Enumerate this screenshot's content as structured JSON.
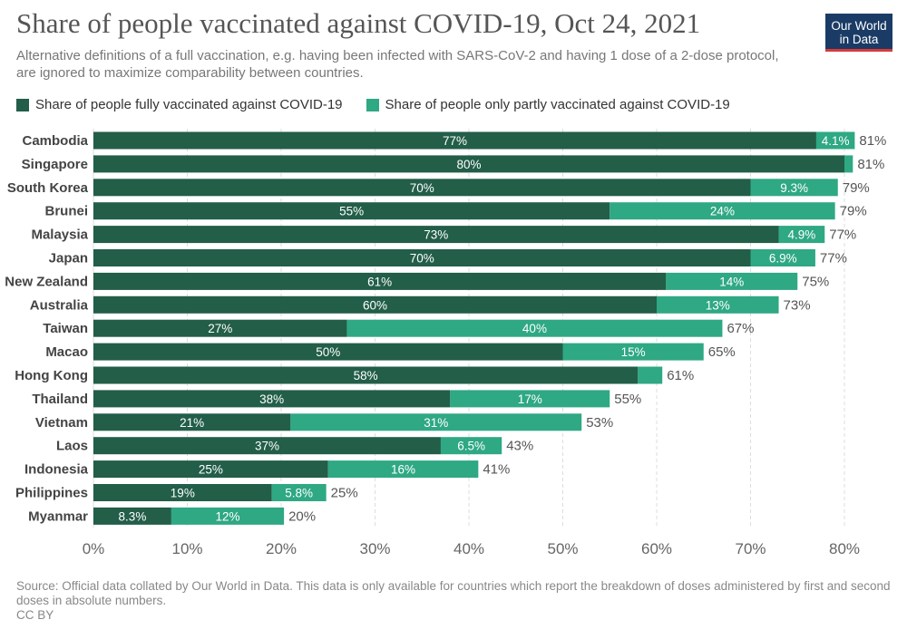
{
  "header": {
    "title": "Share of people vaccinated against COVID-19, Oct 24, 2021",
    "subtitle": "Alternative definitions of a full vaccination, e.g. having been infected with SARS-CoV-2 and having 1 dose of a 2-dose protocol, are ignored to maximize comparability between countries.",
    "logo_line1": "Our World",
    "logo_line2": "in Data"
  },
  "footer": {
    "source": "Source: Official data collated by Our World in Data. This data is only available for countries which report the breakdown of doses administered by first and second doses in absolute numbers.",
    "license": "CC BY"
  },
  "colors": {
    "full": "#225e48",
    "partial": "#2fa884",
    "grid": "#dddddd"
  },
  "chart_data": {
    "type": "bar",
    "orientation": "horizontal",
    "stacked": true,
    "title": "Share of people vaccinated against COVID-19, Oct 24, 2021",
    "xlim": [
      0,
      80
    ],
    "x_ticks": [
      0,
      10,
      20,
      30,
      40,
      50,
      60,
      70,
      80
    ],
    "x_tick_labels": [
      "0%",
      "10%",
      "20%",
      "30%",
      "40%",
      "50%",
      "60%",
      "70%",
      "80%"
    ],
    "grid": "vertical dashed",
    "legend_position": "top",
    "categories": [
      "Cambodia",
      "Singapore",
      "South Korea",
      "Brunei",
      "Malaysia",
      "Japan",
      "New Zealand",
      "Australia",
      "Taiwan",
      "Macao",
      "Hong Kong",
      "Thailand",
      "Vietnam",
      "Laos",
      "Indonesia",
      "Philippines",
      "Myanmar"
    ],
    "series": [
      {
        "name": "Share of people fully vaccinated against COVID-19",
        "values": [
          77,
          80,
          70,
          55,
          73,
          70,
          61,
          60,
          27,
          50,
          58,
          38,
          21,
          37,
          25,
          19,
          8.3
        ],
        "labels": [
          "77%",
          "80%",
          "70%",
          "55%",
          "73%",
          "70%",
          "61%",
          "60%",
          "27%",
          "50%",
          "58%",
          "38%",
          "21%",
          "37%",
          "25%",
          "19%",
          "8.3%"
        ]
      },
      {
        "name": "Share of people only partly vaccinated against COVID-19",
        "values": [
          4.1,
          0.9,
          9.3,
          24,
          4.9,
          6.9,
          14,
          13,
          40,
          15,
          2.6,
          17,
          31,
          6.5,
          16,
          5.8,
          12
        ],
        "labels": [
          "4.1%",
          "",
          "9.3%",
          "24%",
          "4.9%",
          "6.9%",
          "14%",
          "13%",
          "40%",
          "15%",
          "",
          "17%",
          "31%",
          "6.5%",
          "16%",
          "5.8%",
          "12%"
        ]
      }
    ],
    "total_labels": [
      "81%",
      "81%",
      "79%",
      "79%",
      "77%",
      "77%",
      "75%",
      "73%",
      "67%",
      "65%",
      "61%",
      "55%",
      "53%",
      "43%",
      "41%",
      "25%",
      "20%"
    ]
  }
}
